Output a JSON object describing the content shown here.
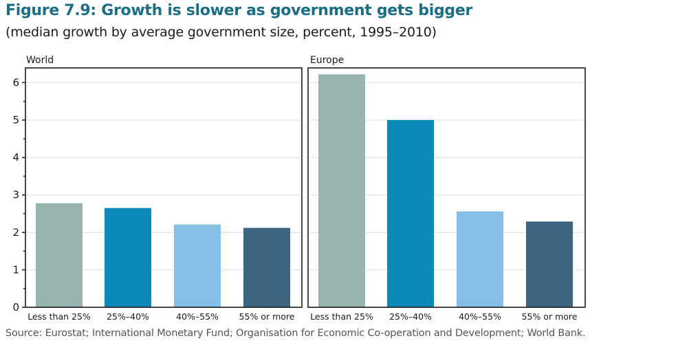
{
  "title": "Figure 7.9: Growth is slower as government gets bigger",
  "subtitle": "(median growth by average government size, percent, 1995–2010)",
  "source": "Source: Eurostat; International Monetary Fund; Organisation for Economic Co-operation and Development; World Bank.",
  "colors": {
    "title": "#1c6d86",
    "gridline": "#e6e6e6",
    "frame": "#1a1a1a",
    "bars": [
      "#97b4b0",
      "#0b8aba",
      "#85bfe8",
      "#3d6480"
    ]
  },
  "chart_data": [
    {
      "type": "bar",
      "title": "World",
      "categories": [
        "Less than 25%",
        "25%–40%",
        "40%–55%",
        "55% or more"
      ],
      "values": [
        2.78,
        2.65,
        2.21,
        2.12
      ],
      "xlabel": "",
      "ylabel": "",
      "ylim": [
        0,
        6.4
      ],
      "yticks": [
        0,
        1,
        2,
        3,
        4,
        5,
        6
      ],
      "grid": true,
      "legend": "none"
    },
    {
      "type": "bar",
      "title": "Europe",
      "categories": [
        "Less than 25%",
        "25%–40%",
        "40%–55%",
        "55% or more"
      ],
      "values": [
        6.22,
        5.0,
        2.56,
        2.29
      ],
      "xlabel": "",
      "ylabel": "",
      "ylim": [
        0,
        6.4
      ],
      "yticks": [
        0,
        1,
        2,
        3,
        4,
        5,
        6
      ],
      "grid": true,
      "legend": "none"
    }
  ]
}
